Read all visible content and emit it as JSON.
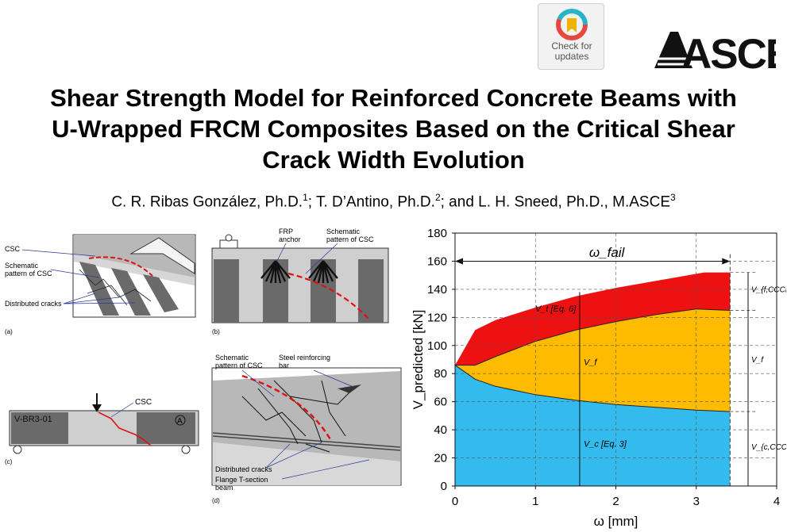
{
  "badge": {
    "line1": "Check for",
    "line2": "updates"
  },
  "publisher_logo": "ASCE",
  "title": {
    "line1": "Shear Strength Model for Reinforced Concrete Beams with",
    "line2": "U-Wrapped FRCM Composites Based on the Critical Shear",
    "line3": "Crack Width Evolution"
  },
  "authors": {
    "a1": "C. R. Ribas González, Ph.D.",
    "s1": "1",
    "a2": "; T. D’Antino, Ph.D.",
    "s2": "2",
    "a3": "; and L. H. Sneed, Ph.D., M.ASCE",
    "s3": "3"
  },
  "fig_a": {
    "label": "(a)",
    "csc": "CSC",
    "schematic1": "Schematic",
    "schematic2": "pattern of CSC",
    "cracks": "Distributed cracks"
  },
  "fig_b": {
    "label": "(b)",
    "frp1": "FRP",
    "frp2": "anchor",
    "schematic1": "Schematic",
    "schematic2": "pattern of CSC"
  },
  "fig_c": {
    "label": "(c)",
    "specimen": "V-BR3-01",
    "circle": "A",
    "csc": "CSC"
  },
  "fig_d": {
    "label": "(d)",
    "schematic1": "Schematic",
    "schematic2": "pattern of CSC",
    "steel1": "Steel reinforcing",
    "steel2": "bar",
    "cracks": "Distributed cracks",
    "flange1": "Flange T-section",
    "flange2": "beam"
  },
  "chart_data": {
    "type": "area",
    "xlabel": "ω [mm]",
    "ylabel": "V_predicted [kN]",
    "xlim": [
      0,
      4
    ],
    "ylim": [
      0,
      180
    ],
    "xticks": [
      "0",
      "1",
      "2",
      "3",
      "4"
    ],
    "yticks": [
      "0",
      "20",
      "40",
      "60",
      "80",
      "100",
      "120",
      "140",
      "160",
      "180"
    ],
    "grid": "dashed",
    "omega_fail_label": "ω_fail",
    "omega_fail": 3.42,
    "series": [
      {
        "name": "V_c [Eq. 3]",
        "color": "#33bbee",
        "x": [
          0,
          0.25,
          0.5,
          1.0,
          1.5,
          2.0,
          2.5,
          3.0,
          3.42
        ],
        "y": [
          86,
          76,
          71,
          65,
          61,
          58,
          56,
          54,
          53
        ]
      },
      {
        "name": "V_f",
        "color": "#ffbb00",
        "x": [
          0,
          0.25,
          0.5,
          1.0,
          1.5,
          2.0,
          2.5,
          3.0,
          3.42
        ],
        "y": [
          86,
          86,
          92,
          103,
          111,
          117,
          122,
          126,
          125
        ]
      },
      {
        "name": "V_t [Eq. 6]",
        "color": "#ee1111",
        "x": [
          0,
          0.25,
          0.5,
          1.0,
          1.5,
          2.0,
          2.5,
          3.0,
          3.1,
          3.42
        ],
        "y": [
          86,
          111,
          118,
          127,
          135,
          141,
          146,
          151,
          152,
          152
        ]
      }
    ],
    "right_labels": {
      "top": "V_{f,CCCM}",
      "mid": "V_f",
      "bottom": "V_{c,CCCM}"
    }
  }
}
